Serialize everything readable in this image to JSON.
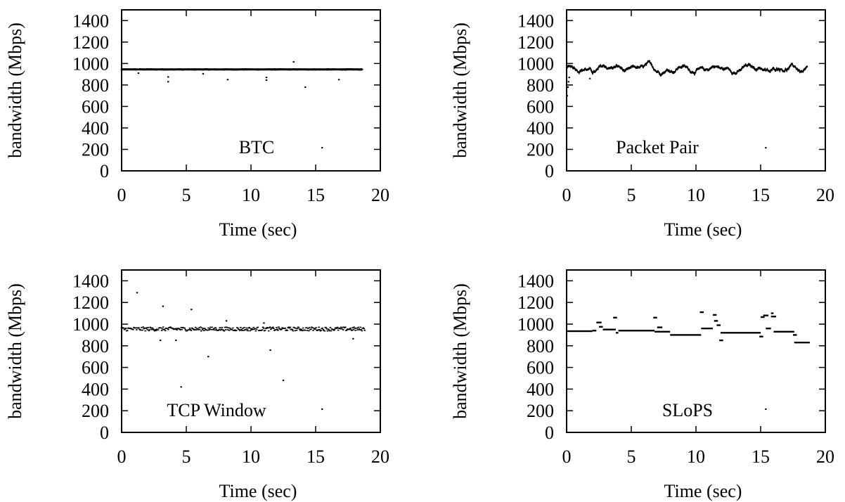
{
  "chart_data": [
    {
      "type": "scatter",
      "panel_label": "BTC",
      "xlabel": "Time (sec)",
      "ylabel": "bandwidth (Mbps)",
      "xlim": [
        0,
        20
      ],
      "ylim": [
        0,
        1500
      ],
      "xticks": [
        0,
        5,
        10,
        15,
        20
      ],
      "yticks": [
        0,
        200,
        400,
        600,
        800,
        1000,
        1200,
        1400
      ],
      "pattern": "flat",
      "x_range": [
        0,
        18.6
      ],
      "base_level": 945,
      "jitter": 6,
      "outliers": [
        [
          1.3,
          910
        ],
        [
          3.6,
          830
        ],
        [
          3.6,
          875
        ],
        [
          6.3,
          905
        ],
        [
          8.2,
          850
        ],
        [
          11.2,
          845
        ],
        [
          11.2,
          870
        ],
        [
          13.3,
          1015
        ],
        [
          14.2,
          780
        ],
        [
          15.5,
          215
        ],
        [
          16.8,
          850
        ]
      ]
    },
    {
      "type": "scatter",
      "panel_label": "Packet Pair",
      "xlabel": "Time (sec)",
      "ylabel": "bandwidth (Mbps)",
      "xlim": [
        0,
        20
      ],
      "ylim": [
        0,
        1500
      ],
      "xticks": [
        0,
        5,
        10,
        15,
        20
      ],
      "yticks": [
        0,
        200,
        400,
        600,
        800,
        1000,
        1200,
        1400
      ],
      "pattern": "wavy",
      "x_range": [
        0,
        18.6
      ],
      "base_level": 950,
      "jitter": 45,
      "outliers": [
        [
          0.05,
          700
        ],
        [
          0.1,
          780
        ],
        [
          0.15,
          830
        ],
        [
          0.2,
          870
        ],
        [
          1.8,
          860
        ],
        [
          15.4,
          215
        ]
      ]
    },
    {
      "type": "scatter",
      "panel_label": "TCP Window",
      "xlabel": "Time (sec)",
      "ylabel": "bandwidth (Mbps)",
      "xlim": [
        0,
        20
      ],
      "ylim": [
        0,
        1500
      ],
      "xticks": [
        0,
        5,
        10,
        15,
        20
      ],
      "yticks": [
        0,
        200,
        400,
        600,
        800,
        1000,
        1200,
        1400
      ],
      "pattern": "flat",
      "x_range": [
        0,
        18.8
      ],
      "base_level": 955,
      "jitter": 18,
      "outliers": [
        [
          1.2,
          1290
        ],
        [
          3.2,
          1165
        ],
        [
          5.4,
          1135
        ],
        [
          4.6,
          420
        ],
        [
          6.7,
          700
        ],
        [
          11.5,
          760
        ],
        [
          12.5,
          480
        ],
        [
          15.5,
          215
        ],
        [
          3.0,
          850
        ],
        [
          4.2,
          850
        ],
        [
          17.9,
          865
        ],
        [
          8.1,
          1030
        ],
        [
          11.0,
          1010
        ]
      ]
    },
    {
      "type": "scatter",
      "panel_label": "SLoPS",
      "xlabel": "Time (sec)",
      "ylabel": "bandwidth (Mbps)",
      "xlim": [
        0,
        20
      ],
      "ylim": [
        0,
        1500
      ],
      "xticks": [
        0,
        5,
        10,
        15,
        20
      ],
      "yticks": [
        0,
        200,
        400,
        600,
        800,
        1000,
        1200,
        1400
      ],
      "pattern": "segments",
      "segments": [
        [
          0,
          2.0,
          935
        ],
        [
          2.0,
          2.3,
          940
        ],
        [
          2.3,
          2.7,
          1015
        ],
        [
          2.5,
          2.8,
          975
        ],
        [
          2.8,
          3.8,
          950
        ],
        [
          3.6,
          3.9,
          1060
        ],
        [
          3.8,
          4.0,
          920
        ],
        [
          4.0,
          6.8,
          940
        ],
        [
          6.7,
          7.0,
          1060
        ],
        [
          7.0,
          7.4,
          970
        ],
        [
          6.8,
          8.0,
          930
        ],
        [
          8.0,
          10.4,
          900
        ],
        [
          10.3,
          10.6,
          1110
        ],
        [
          10.4,
          11.3,
          960
        ],
        [
          11.3,
          11.6,
          1085
        ],
        [
          11.4,
          11.7,
          1030
        ],
        [
          11.6,
          11.9,
          990
        ],
        [
          11.8,
          12.1,
          850
        ],
        [
          11.9,
          15.0,
          920
        ],
        [
          14.9,
          15.2,
          885
        ],
        [
          15.0,
          15.3,
          1065
        ],
        [
          15.2,
          15.6,
          1080
        ],
        [
          15.4,
          15.8,
          960
        ],
        [
          15.8,
          16.0,
          1100
        ],
        [
          15.8,
          16.2,
          1070
        ],
        [
          16.0,
          17.6,
          930
        ],
        [
          17.5,
          17.8,
          900
        ],
        [
          17.6,
          18.8,
          830
        ]
      ],
      "outliers": [
        [
          15.4,
          215
        ]
      ]
    }
  ]
}
